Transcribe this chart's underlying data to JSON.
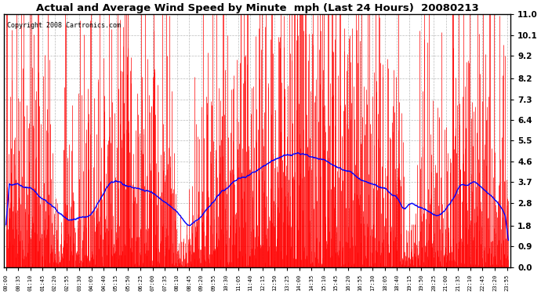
{
  "title": "Actual and Average Wind Speed by Minute  mph (Last 24 Hours)  20080213",
  "copyright": "Copyright 2008 Cartronics.com",
  "background_color": "#ffffff",
  "plot_bg_color": "#ffffff",
  "bar_color": "#ff0000",
  "line_color": "#0000ff",
  "yticks": [
    0.0,
    0.9,
    1.8,
    2.8,
    3.7,
    4.6,
    5.5,
    6.4,
    7.3,
    8.2,
    9.2,
    10.1,
    11.0
  ],
  "ylim": [
    0.0,
    11.0
  ],
  "grid_color": "#bbbbbb",
  "xtick_interval": 35,
  "n_minutes": 1440
}
